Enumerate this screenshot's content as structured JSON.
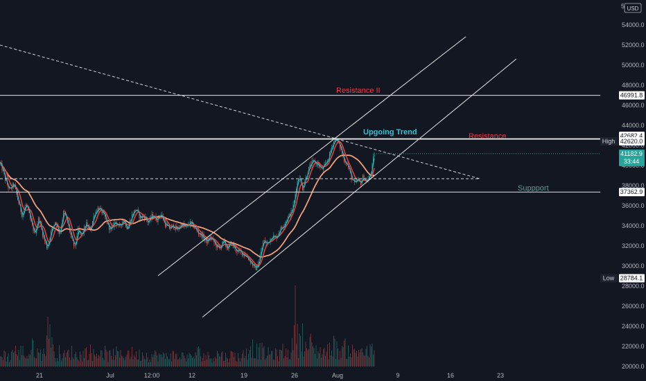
{
  "currency": "USD",
  "chart_data": {
    "type": "candlestick",
    "title": "",
    "xlabel": "",
    "ylabel": "",
    "ylim": [
      19600,
      56000
    ],
    "y_ticks": [
      20000,
      22000,
      24000,
      26000,
      28000,
      30000,
      32000,
      34000,
      36000,
      38000,
      40000,
      42000,
      44000,
      46000,
      48000,
      50000,
      52000,
      54000
    ],
    "x_ticks": [
      "21",
      "Jul",
      "12:00",
      "12",
      "19",
      "26",
      "Aug",
      "9",
      "16",
      "23"
    ],
    "top_partial_tick": "5",
    "grid": false,
    "price_path": [
      [
        0,
        40200
      ],
      [
        4,
        39500
      ],
      [
        8,
        38500
      ],
      [
        14,
        37500
      ],
      [
        20,
        38200
      ],
      [
        26,
        36500
      ],
      [
        32,
        35000
      ],
      [
        38,
        36200
      ],
      [
        44,
        34500
      ],
      [
        50,
        33200
      ],
      [
        56,
        34800
      ],
      [
        62,
        33000
      ],
      [
        68,
        31800
      ],
      [
        74,
        33500
      ],
      [
        80,
        34500
      ],
      [
        86,
        33200
      ],
      [
        92,
        35500
      ],
      [
        98,
        34200
      ],
      [
        104,
        32500
      ],
      [
        108,
        31800
      ],
      [
        112,
        33500
      ],
      [
        118,
        33000
      ],
      [
        124,
        34200
      ],
      [
        130,
        33500
      ],
      [
        136,
        35200
      ],
      [
        142,
        35800
      ],
      [
        148,
        35300
      ],
      [
        154,
        34400
      ],
      [
        160,
        33500
      ],
      [
        166,
        34500
      ],
      [
        172,
        33800
      ],
      [
        178,
        34700
      ],
      [
        184,
        33700
      ],
      [
        190,
        35000
      ],
      [
        196,
        35700
      ],
      [
        202,
        34800
      ],
      [
        208,
        35000
      ],
      [
        214,
        34300
      ],
      [
        220,
        35100
      ],
      [
        226,
        34600
      ],
      [
        232,
        35200
      ],
      [
        238,
        34200
      ],
      [
        244,
        33700
      ],
      [
        250,
        34000
      ],
      [
        256,
        33600
      ],
      [
        262,
        34200
      ],
      [
        268,
        33800
      ],
      [
        274,
        34300
      ],
      [
        280,
        33900
      ],
      [
        286,
        33300
      ],
      [
        292,
        33000
      ],
      [
        298,
        32400
      ],
      [
        304,
        32900
      ],
      [
        310,
        32200
      ],
      [
        316,
        31700
      ],
      [
        322,
        32400
      ],
      [
        328,
        31800
      ],
      [
        334,
        32300
      ],
      [
        340,
        31600
      ],
      [
        346,
        31400
      ],
      [
        352,
        31200
      ],
      [
        358,
        30800
      ],
      [
        364,
        30200
      ],
      [
        368,
        29700
      ],
      [
        372,
        30100
      ],
      [
        376,
        31200
      ],
      [
        380,
        32500
      ],
      [
        386,
        32200
      ],
      [
        392,
        33000
      ],
      [
        398,
        32800
      ],
      [
        404,
        33600
      ],
      [
        410,
        34200
      ],
      [
        416,
        34900
      ],
      [
        420,
        35300
      ],
      [
        424,
        36200
      ],
      [
        428,
        38200
      ],
      [
        432,
        39000
      ],
      [
        436,
        37600
      ],
      [
        440,
        38600
      ],
      [
        446,
        39800
      ],
      [
        452,
        40400
      ],
      [
        458,
        40200
      ],
      [
        464,
        39600
      ],
      [
        470,
        40100
      ],
      [
        476,
        41200
      ],
      [
        480,
        42200
      ],
      [
        484,
        42700
      ],
      [
        488,
        42300
      ],
      [
        492,
        41600
      ],
      [
        496,
        40600
      ],
      [
        500,
        40300
      ],
      [
        504,
        39500
      ],
      [
        508,
        38600
      ],
      [
        512,
        38100
      ],
      [
        516,
        38600
      ],
      [
        520,
        38200
      ],
      [
        524,
        38900
      ],
      [
        528,
        38400
      ],
      [
        532,
        38700
      ],
      [
        536,
        39500
      ],
      [
        538,
        40500
      ],
      [
        540,
        41183
      ]
    ],
    "volume_profile": [
      [
        0,
        21500
      ],
      [
        6,
        22000
      ],
      [
        14,
        21300
      ],
      [
        20,
        23000
      ],
      [
        26,
        21700
      ],
      [
        32,
        22500
      ],
      [
        40,
        21500
      ],
      [
        48,
        23200
      ],
      [
        56,
        21800
      ],
      [
        64,
        22400
      ],
      [
        72,
        27000
      ],
      [
        78,
        21600
      ],
      [
        86,
        22200
      ],
      [
        94,
        21600
      ],
      [
        102,
        22300
      ],
      [
        110,
        21700
      ],
      [
        118,
        21800
      ],
      [
        128,
        22500
      ],
      [
        138,
        21700
      ],
      [
        146,
        22700
      ],
      [
        156,
        21600
      ],
      [
        166,
        22100
      ],
      [
        176,
        21600
      ],
      [
        186,
        22300
      ],
      [
        196,
        21700
      ],
      [
        206,
        22000
      ],
      [
        216,
        21600
      ],
      [
        226,
        21800
      ],
      [
        236,
        21500
      ],
      [
        246,
        21900
      ],
      [
        256,
        21500
      ],
      [
        266,
        21700
      ],
      [
        276,
        21400
      ],
      [
        286,
        22200
      ],
      [
        296,
        21600
      ],
      [
        306,
        21500
      ],
      [
        316,
        22000
      ],
      [
        326,
        21500
      ],
      [
        336,
        21800
      ],
      [
        346,
        21400
      ],
      [
        356,
        22200
      ],
      [
        362,
        23500
      ],
      [
        368,
        22200
      ],
      [
        376,
        22600
      ],
      [
        384,
        21800
      ],
      [
        392,
        22100
      ],
      [
        400,
        21700
      ],
      [
        408,
        22400
      ],
      [
        416,
        22000
      ],
      [
        422,
        23000
      ],
      [
        426,
        29200
      ],
      [
        430,
        22800
      ],
      [
        434,
        26500
      ],
      [
        440,
        22600
      ],
      [
        448,
        23500
      ],
      [
        456,
        22400
      ],
      [
        464,
        22500
      ],
      [
        472,
        22200
      ],
      [
        480,
        23600
      ],
      [
        488,
        22300
      ],
      [
        496,
        22900
      ],
      [
        504,
        22600
      ],
      [
        512,
        22200
      ],
      [
        520,
        22800
      ],
      [
        528,
        22100
      ],
      [
        534,
        22300
      ],
      [
        538,
        22900
      ],
      [
        540,
        21800
      ]
    ],
    "horizontal_levels": [
      {
        "price": 46991.8,
        "label": "46991.8"
      },
      {
        "price": 42682.4,
        "label": "42682.4"
      },
      {
        "price": 42620.0,
        "label": "42620.0",
        "tag": "High"
      },
      {
        "price": 37362.9,
        "label": "37362.9"
      },
      {
        "price": 28784.1,
        "label": "28784.1",
        "tag": "Low"
      }
    ],
    "current_price": {
      "price": 41182.9,
      "label": "41182.9",
      "countdown": "33:44",
      "color": "#26a69a"
    },
    "annotations": [
      {
        "text": "Resistance II",
        "color": "#f23645"
      },
      {
        "text": "Upgoing Trend",
        "color": "#2ec4d6"
      },
      {
        "text": "Resistance",
        "color": "#f23645"
      },
      {
        "text": "Suppport",
        "color": "#5b9a8b"
      }
    ],
    "colors": {
      "background": "#131722",
      "up": "#26a69a",
      "down": "#ef5350",
      "ma_fast_teal": "#2bb5c4",
      "ma_red": "#e0433b",
      "ma_slow": "#f2a07b",
      "axis_text": "#b2b5be"
    }
  }
}
